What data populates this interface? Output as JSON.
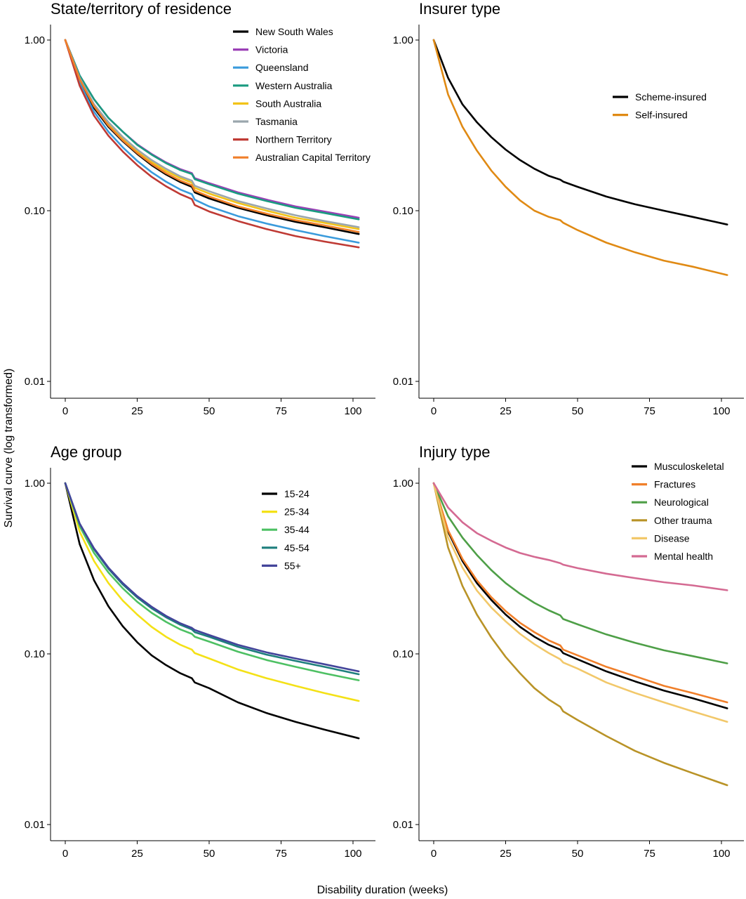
{
  "figure": {
    "ylabel": "Survival curve (log transformed)",
    "xlabel": "Disability duration (weeks)"
  },
  "chart_data": [
    {
      "type": "line",
      "title": "State/territory of residence",
      "scale_y": "log",
      "ylim": [
        0.01,
        1.0
      ],
      "yticks": [
        "0.01",
        "0.10",
        "1.00"
      ],
      "xlim": [
        0,
        102
      ],
      "xticks": [
        "0",
        "25",
        "50",
        "75",
        "100"
      ],
      "grid": false,
      "legend_position": "top-right",
      "x": [
        0,
        5,
        10,
        15,
        20,
        25,
        30,
        35,
        40,
        44,
        45,
        50,
        60,
        70,
        80,
        90,
        102
      ],
      "series": [
        {
          "name": "New South Wales",
          "color": "#000000",
          "values": [
            1.0,
            0.58,
            0.4,
            0.31,
            0.255,
            0.215,
            0.185,
            0.163,
            0.147,
            0.138,
            0.128,
            0.118,
            0.104,
            0.094,
            0.086,
            0.08,
            0.073
          ]
        },
        {
          "name": "Victoria",
          "color": "#9B3FB6",
          "values": [
            1.0,
            0.62,
            0.45,
            0.35,
            0.29,
            0.245,
            0.215,
            0.192,
            0.175,
            0.166,
            0.155,
            0.145,
            0.128,
            0.116,
            0.106,
            0.099,
            0.091
          ]
        },
        {
          "name": "Queensland",
          "color": "#3A9BDC",
          "values": [
            1.0,
            0.56,
            0.38,
            0.29,
            0.235,
            0.196,
            0.168,
            0.148,
            0.133,
            0.125,
            0.116,
            0.106,
            0.093,
            0.084,
            0.077,
            0.071,
            0.065
          ]
        },
        {
          "name": "Western Australia",
          "color": "#1A9B80",
          "values": [
            1.0,
            0.62,
            0.45,
            0.35,
            0.29,
            0.243,
            0.213,
            0.19,
            0.173,
            0.164,
            0.153,
            0.143,
            0.126,
            0.114,
            0.104,
            0.097,
            0.089
          ]
        },
        {
          "name": "South Australia",
          "color": "#F2C318",
          "values": [
            1.0,
            0.59,
            0.41,
            0.32,
            0.265,
            0.223,
            0.193,
            0.171,
            0.155,
            0.146,
            0.136,
            0.126,
            0.111,
            0.1,
            0.091,
            0.085,
            0.078
          ]
        },
        {
          "name": "Tasmania",
          "color": "#9AA6AD",
          "values": [
            1.0,
            0.6,
            0.42,
            0.33,
            0.27,
            0.228,
            0.198,
            0.176,
            0.159,
            0.15,
            0.14,
            0.13,
            0.114,
            0.103,
            0.094,
            0.087,
            0.08
          ]
        },
        {
          "name": "Northern Territory",
          "color": "#BF3A34",
          "values": [
            1.0,
            0.54,
            0.36,
            0.275,
            0.222,
            0.185,
            0.158,
            0.139,
            0.125,
            0.117,
            0.108,
            0.099,
            0.087,
            0.078,
            0.071,
            0.066,
            0.061
          ]
        },
        {
          "name": "Australian Capital Territory",
          "color": "#F07F2A",
          "values": [
            1.0,
            0.59,
            0.41,
            0.315,
            0.258,
            0.218,
            0.188,
            0.166,
            0.15,
            0.141,
            0.131,
            0.121,
            0.106,
            0.096,
            0.088,
            0.082,
            0.075
          ]
        }
      ]
    },
    {
      "type": "line",
      "title": "Insurer type",
      "scale_y": "log",
      "ylim": [
        0.01,
        1.0
      ],
      "yticks": [
        "0.01",
        "0.10",
        "1.00"
      ],
      "xlim": [
        0,
        102
      ],
      "xticks": [
        "0",
        "25",
        "50",
        "75",
        "100"
      ],
      "grid": false,
      "legend_position": "top-right",
      "x": [
        0,
        5,
        10,
        15,
        20,
        25,
        30,
        35,
        40,
        44,
        45,
        50,
        60,
        70,
        80,
        90,
        102
      ],
      "series": [
        {
          "name": "Scheme-insured",
          "color": "#000000",
          "values": [
            1.0,
            0.6,
            0.42,
            0.33,
            0.27,
            0.228,
            0.198,
            0.176,
            0.16,
            0.152,
            0.148,
            0.138,
            0.121,
            0.109,
            0.1,
            0.092,
            0.083
          ]
        },
        {
          "name": "Self-insured",
          "color": "#E08A14",
          "values": [
            1.0,
            0.48,
            0.31,
            0.225,
            0.172,
            0.138,
            0.115,
            0.1,
            0.092,
            0.088,
            0.085,
            0.077,
            0.065,
            0.057,
            0.051,
            0.047,
            0.042
          ]
        }
      ]
    },
    {
      "type": "line",
      "title": "Age group",
      "scale_y": "log",
      "ylim": [
        0.01,
        1.0
      ],
      "yticks": [
        "0.01",
        "0.10",
        "1.00"
      ],
      "xlim": [
        0,
        102
      ],
      "xticks": [
        "0",
        "25",
        "50",
        "75",
        "100"
      ],
      "grid": false,
      "legend_position": "top-right",
      "x": [
        0,
        5,
        10,
        15,
        20,
        25,
        30,
        35,
        40,
        44,
        45,
        50,
        60,
        70,
        80,
        90,
        102
      ],
      "series": [
        {
          "name": "15-24",
          "color": "#000000",
          "values": [
            1.0,
            0.44,
            0.27,
            0.19,
            0.145,
            0.117,
            0.098,
            0.086,
            0.077,
            0.072,
            0.068,
            0.063,
            0.052,
            0.045,
            0.04,
            0.036,
            0.032
          ]
        },
        {
          "name": "25-34",
          "color": "#F4E117",
          "values": [
            1.0,
            0.52,
            0.35,
            0.26,
            0.205,
            0.17,
            0.144,
            0.126,
            0.113,
            0.106,
            0.101,
            0.094,
            0.081,
            0.072,
            0.065,
            0.059,
            0.053
          ]
        },
        {
          "name": "35-44",
          "color": "#4DC063",
          "values": [
            1.0,
            0.56,
            0.39,
            0.3,
            0.242,
            0.202,
            0.174,
            0.154,
            0.139,
            0.131,
            0.126,
            0.118,
            0.103,
            0.092,
            0.084,
            0.077,
            0.07
          ]
        },
        {
          "name": "45-54",
          "color": "#1E7F7D",
          "values": [
            1.0,
            0.58,
            0.41,
            0.315,
            0.255,
            0.214,
            0.185,
            0.164,
            0.148,
            0.139,
            0.134,
            0.126,
            0.11,
            0.099,
            0.091,
            0.084,
            0.076
          ]
        },
        {
          "name": "55+",
          "color": "#43449A",
          "values": [
            1.0,
            0.58,
            0.415,
            0.32,
            0.26,
            0.218,
            0.189,
            0.167,
            0.151,
            0.142,
            0.138,
            0.129,
            0.113,
            0.102,
            0.094,
            0.087,
            0.079
          ]
        }
      ]
    },
    {
      "type": "line",
      "title": "Injury type",
      "scale_y": "log",
      "ylim": [
        0.01,
        1.0
      ],
      "yticks": [
        "0.01",
        "0.10",
        "1.00"
      ],
      "xlim": [
        0,
        102
      ],
      "xticks": [
        "0",
        "25",
        "50",
        "75",
        "100"
      ],
      "grid": false,
      "legend_position": "top-right",
      "x": [
        0,
        5,
        10,
        15,
        20,
        25,
        30,
        35,
        40,
        44,
        45,
        50,
        60,
        70,
        80,
        90,
        102
      ],
      "series": [
        {
          "name": "Musculoskeletal",
          "color": "#000000",
          "values": [
            1.0,
            0.52,
            0.35,
            0.26,
            0.207,
            0.17,
            0.144,
            0.126,
            0.113,
            0.106,
            0.101,
            0.093,
            0.079,
            0.069,
            0.061,
            0.055,
            0.048
          ]
        },
        {
          "name": "Fractures",
          "color": "#F07F2A",
          "values": [
            1.0,
            0.53,
            0.36,
            0.27,
            0.215,
            0.178,
            0.152,
            0.134,
            0.12,
            0.112,
            0.106,
            0.098,
            0.084,
            0.074,
            0.065,
            0.059,
            0.052
          ]
        },
        {
          "name": "Neurological",
          "color": "#4E9F47",
          "values": [
            1.0,
            0.64,
            0.48,
            0.38,
            0.31,
            0.26,
            0.225,
            0.199,
            0.18,
            0.168,
            0.16,
            0.149,
            0.13,
            0.116,
            0.105,
            0.097,
            0.088
          ]
        },
        {
          "name": "Other trauma",
          "color": "#B99327",
          "values": [
            1.0,
            0.42,
            0.25,
            0.17,
            0.125,
            0.096,
            0.077,
            0.063,
            0.054,
            0.049,
            0.046,
            0.041,
            0.033,
            0.027,
            0.023,
            0.02,
            0.017
          ]
        },
        {
          "name": "Disease",
          "color": "#F2C86A",
          "values": [
            1.0,
            0.48,
            0.32,
            0.235,
            0.187,
            0.155,
            0.131,
            0.114,
            0.101,
            0.093,
            0.089,
            0.082,
            0.068,
            0.059,
            0.052,
            0.046,
            0.04
          ]
        },
        {
          "name": "Mental health",
          "color": "#D46A92",
          "values": [
            1.0,
            0.72,
            0.59,
            0.51,
            0.46,
            0.42,
            0.39,
            0.37,
            0.355,
            0.34,
            0.333,
            0.318,
            0.295,
            0.278,
            0.263,
            0.252,
            0.236
          ]
        }
      ]
    }
  ]
}
